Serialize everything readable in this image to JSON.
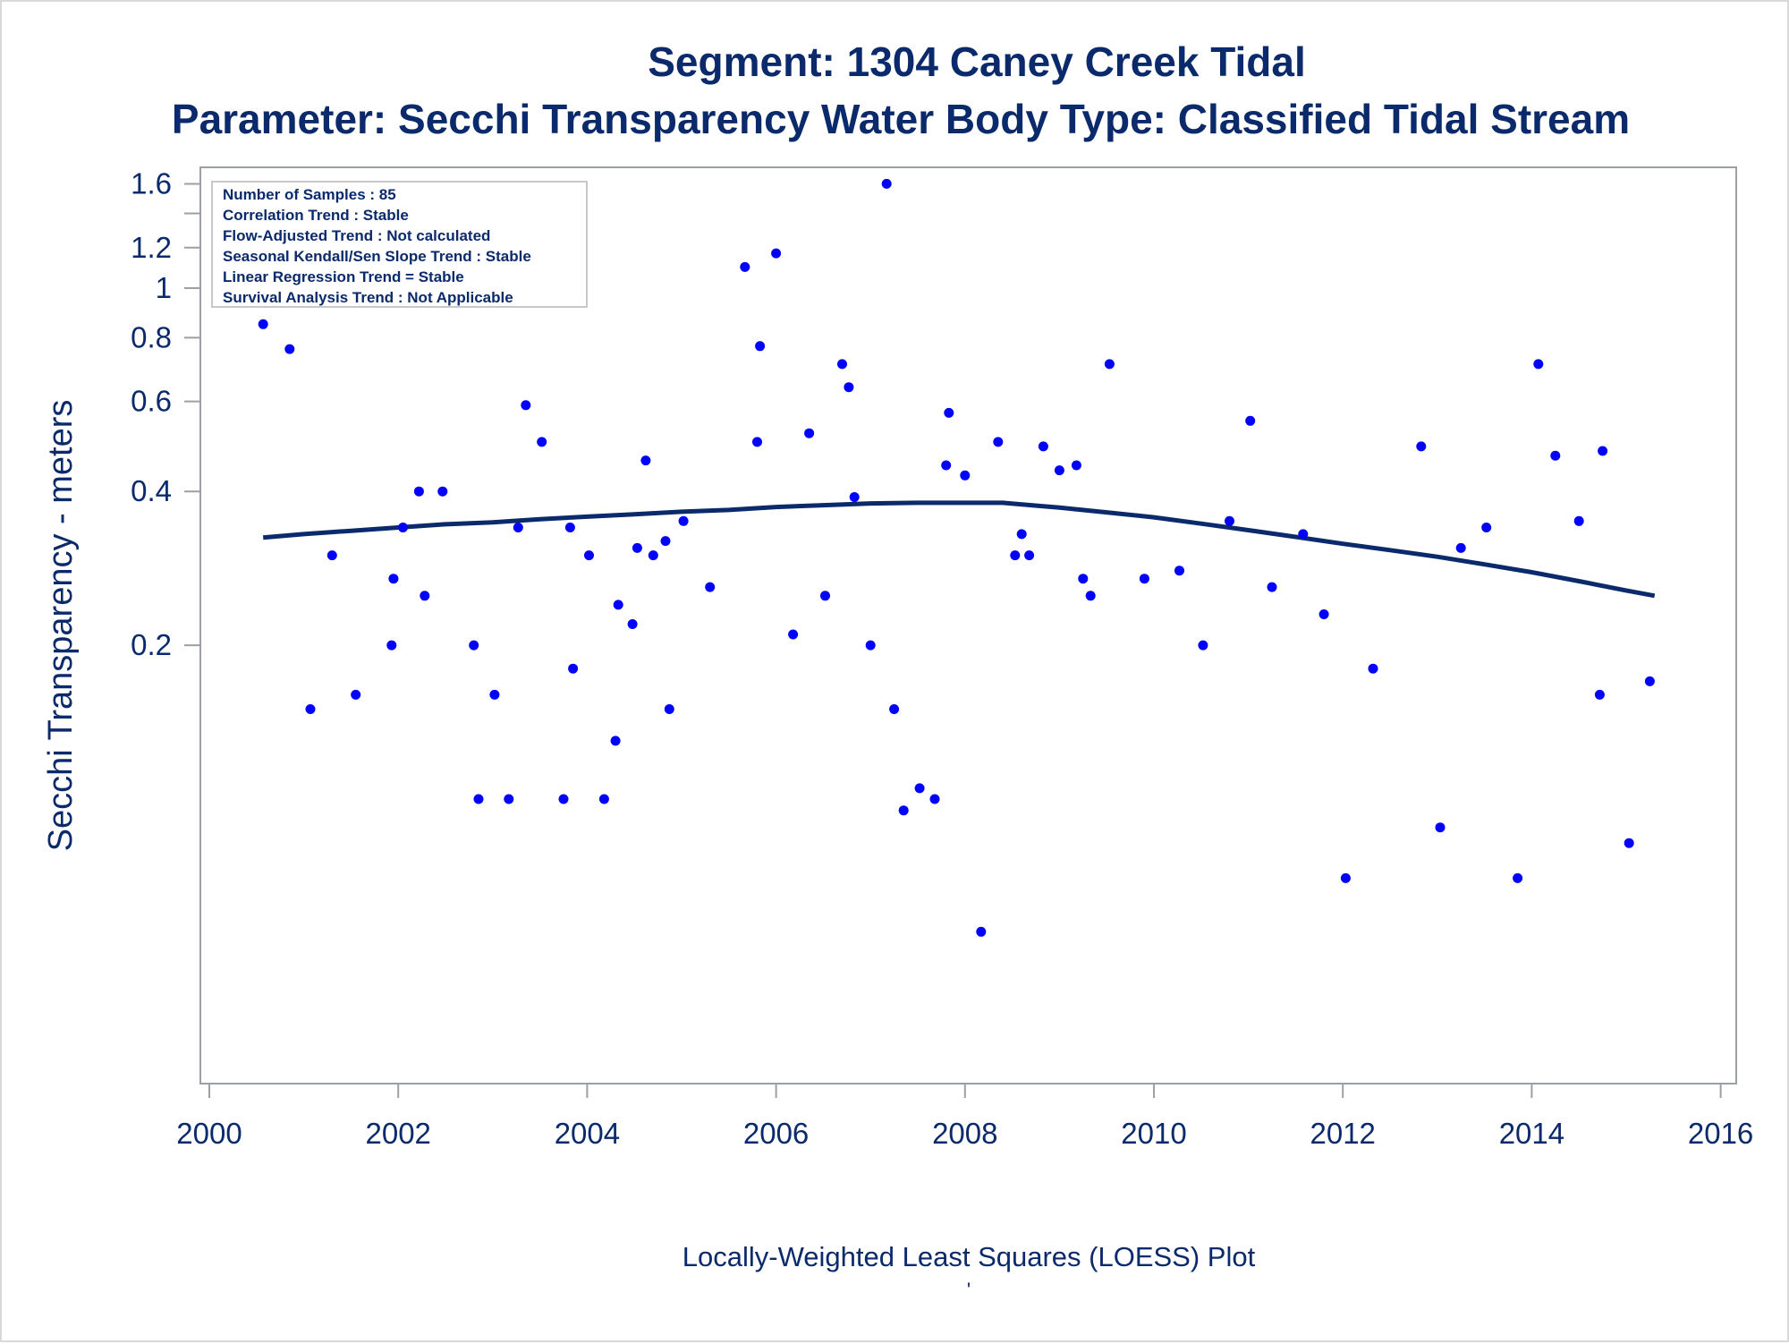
{
  "chart_data": {
    "type": "scatter",
    "title": "Segment: 1304  Caney Creek Tidal",
    "subtitle": "Parameter: Secchi Transparency   Water Body Type: Classified Tidal Stream",
    "xlabel": "Locally-Weighted Least Squares (LOESS) Plot",
    "ylabel": "Secchi Transparency - meters",
    "footnote": "'",
    "y_scale": "log",
    "xlim": [
      2000,
      2016
    ],
    "ylim": [
      0.054,
      1.65
    ],
    "x_ticks": [
      2000,
      2002,
      2004,
      2006,
      2008,
      2010,
      2012,
      2014,
      2016
    ],
    "y_ticks": [
      0.2,
      0.4,
      0.6,
      0.8,
      1,
      1.2,
      1.6
    ],
    "y_tick_labels": [
      "0.2",
      "0.4",
      "0.6",
      "0.8",
      "1",
      "1.2",
      "1.6"
    ],
    "legend_position": "top-left",
    "stats_box": [
      "Number of Samples : 85",
      "Correlation Trend : Stable",
      "Flow-Adjusted Trend : Not calculated",
      "Seasonal Kendall/Sen Slope Trend : Stable",
      "Linear Regression Trend = Stable",
      "Survival Analysis Trend : Not Applicable"
    ],
    "colors": {
      "points": "#0000ff",
      "loess": "#0b2a6b",
      "text": "#0b2a6b",
      "axis": "#9aa0a6"
    },
    "points": [
      [
        2000.57,
        0.85
      ],
      [
        2000.85,
        0.76
      ],
      [
        2001.07,
        0.15
      ],
      [
        2001.3,
        0.3
      ],
      [
        2001.55,
        0.16
      ],
      [
        2001.93,
        0.2
      ],
      [
        2001.95,
        0.27
      ],
      [
        2002.05,
        0.34
      ],
      [
        2002.22,
        0.4
      ],
      [
        2002.28,
        0.25
      ],
      [
        2002.47,
        0.4
      ],
      [
        2002.8,
        0.2
      ],
      [
        2002.85,
        0.1
      ],
      [
        2003.02,
        0.16
      ],
      [
        2003.17,
        0.1
      ],
      [
        2003.27,
        0.34
      ],
      [
        2003.35,
        0.59
      ],
      [
        2003.52,
        0.5
      ],
      [
        2003.75,
        0.1
      ],
      [
        2003.82,
        0.34
      ],
      [
        2003.85,
        0.18
      ],
      [
        2004.02,
        0.3
      ],
      [
        2004.18,
        0.1
      ],
      [
        2004.3,
        0.13
      ],
      [
        2004.33,
        0.24
      ],
      [
        2004.48,
        0.22
      ],
      [
        2004.53,
        0.31
      ],
      [
        2004.62,
        0.46
      ],
      [
        2004.7,
        0.3
      ],
      [
        2004.83,
        0.32
      ],
      [
        2004.87,
        0.15
      ],
      [
        2005.02,
        0.35
      ],
      [
        2005.3,
        0.26
      ],
      [
        2005.67,
        1.1
      ],
      [
        2005.8,
        0.5
      ],
      [
        2005.83,
        0.77
      ],
      [
        2006.0,
        1.17
      ],
      [
        2006.18,
        0.21
      ],
      [
        2006.35,
        0.52
      ],
      [
        2006.52,
        0.25
      ],
      [
        2006.7,
        0.71
      ],
      [
        2006.77,
        0.64
      ],
      [
        2006.83,
        0.39
      ],
      [
        2007.0,
        0.2
      ],
      [
        2007.17,
        1.6
      ],
      [
        2007.25,
        0.15
      ],
      [
        2007.35,
        0.095
      ],
      [
        2007.52,
        0.105
      ],
      [
        2007.68,
        0.1
      ],
      [
        2007.8,
        0.45
      ],
      [
        2007.83,
        0.57
      ],
      [
        2008.0,
        0.43
      ],
      [
        2008.17,
        0.055
      ],
      [
        2008.35,
        0.5
      ],
      [
        2008.53,
        0.3
      ],
      [
        2008.6,
        0.33
      ],
      [
        2008.68,
        0.3
      ],
      [
        2008.83,
        0.49
      ],
      [
        2009.0,
        0.44
      ],
      [
        2009.18,
        0.45
      ],
      [
        2009.25,
        0.27
      ],
      [
        2009.33,
        0.25
      ],
      [
        2009.53,
        0.71
      ],
      [
        2009.9,
        0.27
      ],
      [
        2010.27,
        0.28
      ],
      [
        2010.52,
        0.2
      ],
      [
        2010.8,
        0.35
      ],
      [
        2011.02,
        0.55
      ],
      [
        2011.25,
        0.26
      ],
      [
        2011.58,
        0.33
      ],
      [
        2011.8,
        0.23
      ],
      [
        2012.03,
        0.07
      ],
      [
        2012.32,
        0.18
      ],
      [
        2012.83,
        0.49
      ],
      [
        2013.03,
        0.088
      ],
      [
        2013.25,
        0.31
      ],
      [
        2013.52,
        0.34
      ],
      [
        2013.85,
        0.07
      ],
      [
        2014.07,
        0.71
      ],
      [
        2014.25,
        0.47
      ],
      [
        2014.5,
        0.35
      ],
      [
        2014.72,
        0.16
      ],
      [
        2014.75,
        0.48
      ],
      [
        2015.03,
        0.082
      ],
      [
        2015.25,
        0.17
      ]
    ],
    "loess": [
      [
        2000.57,
        0.325
      ],
      [
        2001.0,
        0.33
      ],
      [
        2001.5,
        0.335
      ],
      [
        2002.0,
        0.34
      ],
      [
        2002.5,
        0.345
      ],
      [
        2003.0,
        0.348
      ],
      [
        2003.5,
        0.353
      ],
      [
        2004.0,
        0.357
      ],
      [
        2004.5,
        0.361
      ],
      [
        2005.0,
        0.365
      ],
      [
        2005.5,
        0.368
      ],
      [
        2006.0,
        0.373
      ],
      [
        2006.5,
        0.376
      ],
      [
        2007.0,
        0.379
      ],
      [
        2007.5,
        0.38
      ],
      [
        2008.0,
        0.38
      ],
      [
        2008.4,
        0.38
      ],
      [
        2008.7,
        0.376
      ],
      [
        2009.0,
        0.372
      ],
      [
        2009.5,
        0.364
      ],
      [
        2010.0,
        0.356
      ],
      [
        2010.5,
        0.346
      ],
      [
        2011.0,
        0.336
      ],
      [
        2011.5,
        0.326
      ],
      [
        2012.0,
        0.316
      ],
      [
        2012.5,
        0.307
      ],
      [
        2013.0,
        0.298
      ],
      [
        2013.5,
        0.288
      ],
      [
        2014.0,
        0.278
      ],
      [
        2014.5,
        0.267
      ],
      [
        2015.0,
        0.256
      ],
      [
        2015.3,
        0.25
      ]
    ]
  }
}
